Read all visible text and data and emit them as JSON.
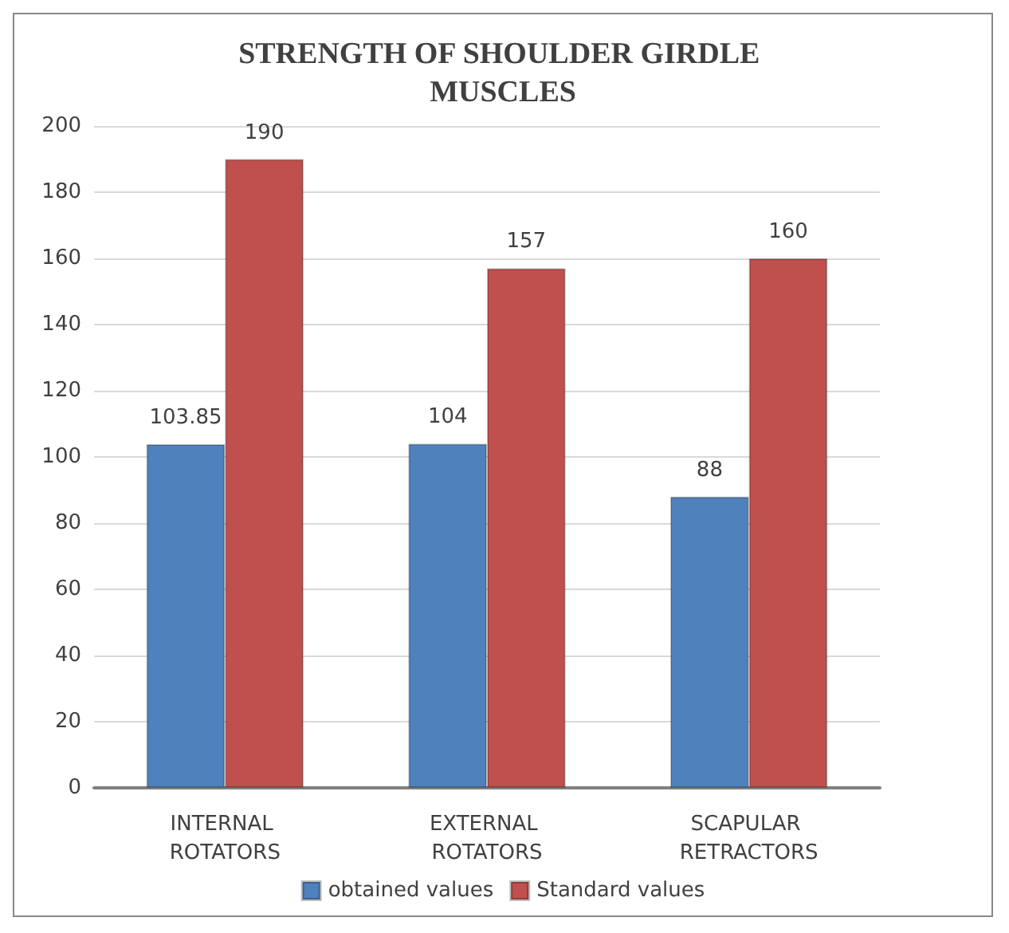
{
  "chart_data": {
    "type": "bar",
    "title": "STRENGTH OF SHOULDER GIRDLE MUSCLES",
    "categories": [
      "INTERNAL ROTATORS",
      "EXTERNAL ROTATORS",
      "SCAPULAR RETRACTORS"
    ],
    "series": [
      {
        "name": "obtained values",
        "color": "#4f81bd",
        "values": [
          103.85,
          104,
          88
        ]
      },
      {
        "name": "Standard values",
        "color": "#c0504d",
        "values": [
          190,
          157,
          160
        ]
      }
    ],
    "ylim": [
      0,
      200
    ],
    "yticks": [
      0,
      20,
      40,
      60,
      80,
      100,
      120,
      140,
      160,
      180,
      200
    ],
    "grid": "y",
    "legend": "bottom",
    "data_labels": true
  }
}
